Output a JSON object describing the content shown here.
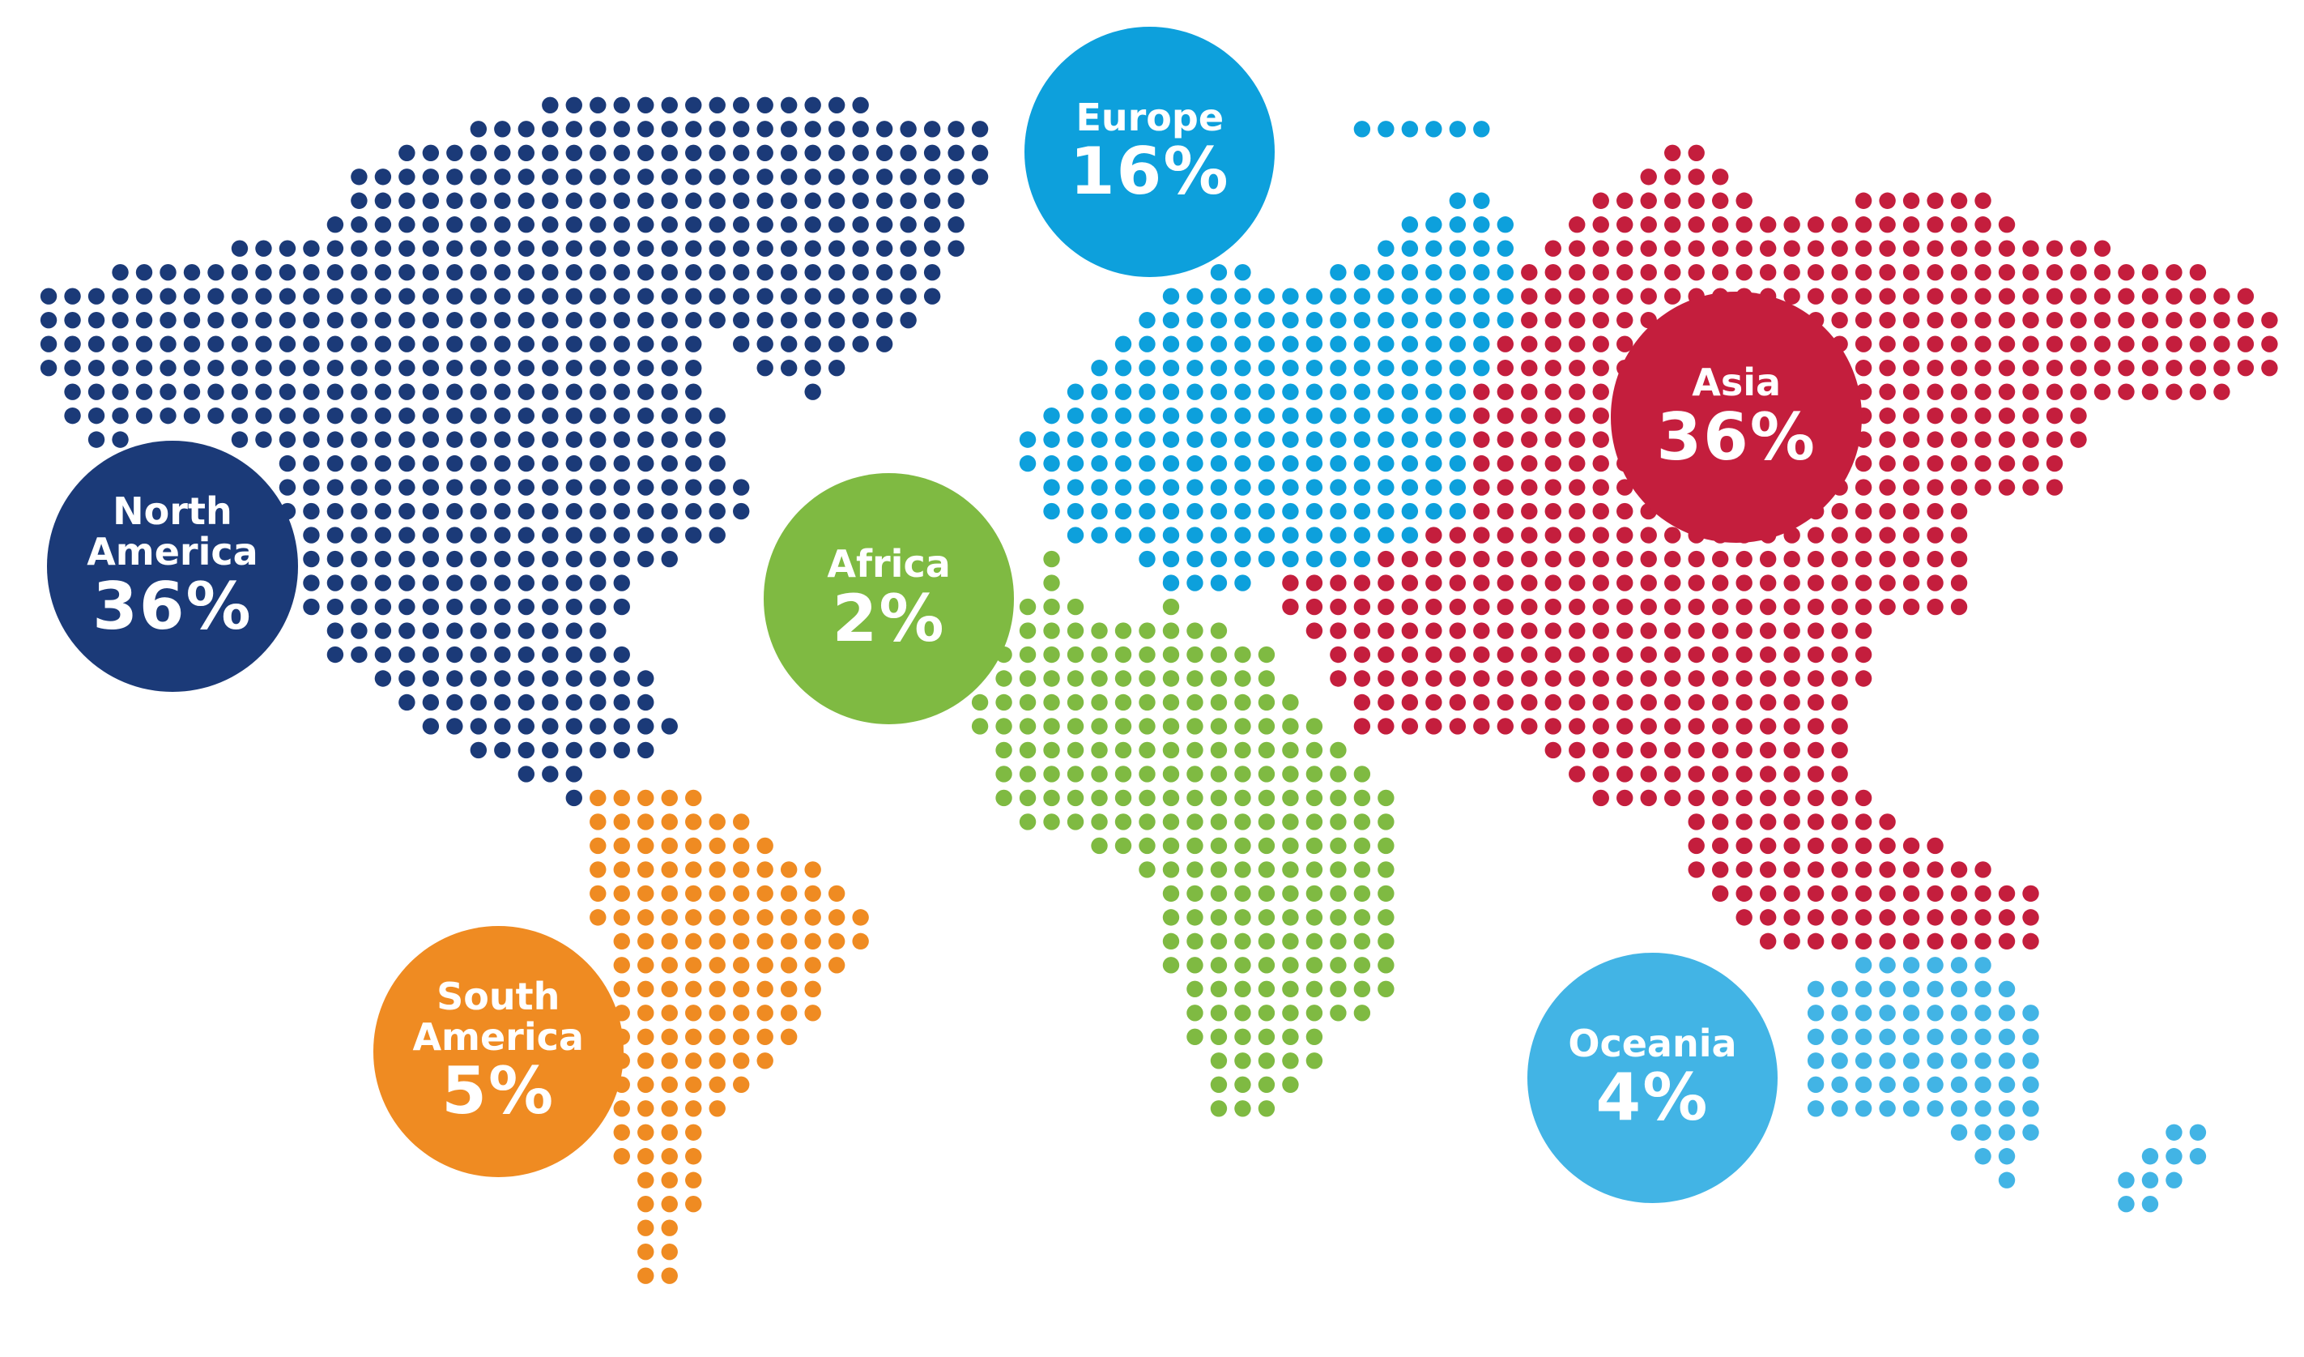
{
  "regions": {
    "names": [
      "Europe",
      "Asia",
      "North America",
      "Africa",
      "South America",
      "Oceania"
    ],
    "values": [
      16,
      36,
      36,
      2,
      5,
      4
    ],
    "value_labels": [
      "16%",
      "36%",
      "36%",
      "2%",
      "5%",
      "4%"
    ],
    "colors": [
      "#0da0dc",
      "#c41e3d",
      "#1b3a78",
      "#7fba42",
      "#ef8b22",
      "#42b4e5"
    ]
  }
}
